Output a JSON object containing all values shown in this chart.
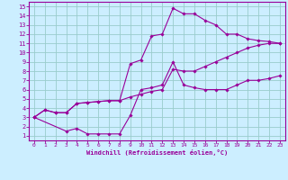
{
  "xlabel": "Windchill (Refroidissement éolien,°C)",
  "ylabel": "",
  "bg_color": "#cceeff",
  "grid_color": "#99cccc",
  "line_color": "#990099",
  "xlim": [
    -0.5,
    23.5
  ],
  "ylim": [
    0.5,
    15.5
  ],
  "xticks": [
    0,
    1,
    2,
    3,
    4,
    5,
    6,
    7,
    8,
    9,
    10,
    11,
    12,
    13,
    14,
    15,
    16,
    17,
    18,
    19,
    20,
    21,
    22,
    23
  ],
  "yticks": [
    1,
    2,
    3,
    4,
    5,
    6,
    7,
    8,
    9,
    10,
    11,
    12,
    13,
    14,
    15
  ],
  "line1_x": [
    0,
    1,
    2,
    3,
    4,
    5,
    6,
    7,
    8,
    9,
    10,
    11,
    12,
    13,
    14,
    15,
    16,
    17,
    18,
    19,
    20,
    21,
    22,
    23
  ],
  "line1_y": [
    3.0,
    3.8,
    3.5,
    3.5,
    4.5,
    4.6,
    4.7,
    4.8,
    4.8,
    8.8,
    9.2,
    11.8,
    12.0,
    14.8,
    14.2,
    14.2,
    13.5,
    13.0,
    12.0,
    12.0,
    11.5,
    11.3,
    11.2,
    11.0
  ],
  "line2_x": [
    0,
    3,
    4,
    5,
    6,
    7,
    8,
    9,
    10,
    11,
    12,
    13,
    14,
    15,
    16,
    17,
    18,
    19,
    20,
    21,
    22,
    23
  ],
  "line2_y": [
    3.0,
    1.5,
    1.8,
    1.2,
    1.2,
    1.2,
    1.2,
    3.2,
    6.0,
    6.2,
    6.5,
    9.0,
    6.5,
    6.2,
    6.0,
    6.0,
    6.0,
    6.5,
    7.0,
    7.0,
    7.2,
    7.5
  ],
  "line3_x": [
    0,
    1,
    2,
    3,
    4,
    5,
    6,
    7,
    8,
    9,
    10,
    11,
    12,
    13,
    14,
    15,
    16,
    17,
    18,
    19,
    20,
    21,
    22,
    23
  ],
  "line3_y": [
    3.0,
    3.8,
    3.5,
    3.5,
    4.5,
    4.6,
    4.7,
    4.8,
    4.8,
    5.2,
    5.5,
    5.8,
    6.0,
    8.2,
    8.0,
    8.0,
    8.5,
    9.0,
    9.5,
    10.0,
    10.5,
    10.8,
    11.0,
    11.0
  ]
}
